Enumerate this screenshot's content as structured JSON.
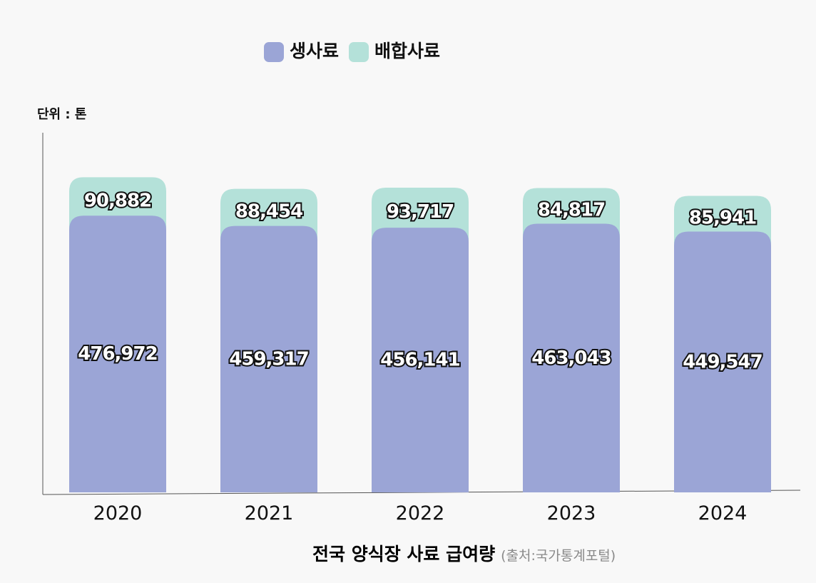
{
  "chart_data": {
    "type": "bar",
    "stacked": true,
    "categories": [
      "2020",
      "2021",
      "2022",
      "2023",
      "2024"
    ],
    "series": [
      {
        "name": "생사료",
        "values": [
          476972,
          459317,
          456141,
          463043,
          449547
        ],
        "color": "#9ba5d6"
      },
      {
        "name": "배합사료",
        "values": [
          90882,
          88454,
          93717,
          84817,
          85941
        ],
        "color": "#b4e1d9"
      }
    ],
    "value_labels": {
      "생사료": [
        "476,972",
        "459,317",
        "456,141",
        "463,043",
        "449,547"
      ],
      "배합사료": [
        "90,882",
        "88,454",
        "93,717",
        "84,817",
        "85,941"
      ]
    },
    "unit_label": "단위 : 톤",
    "title": "전국 양식장 사료 급여량",
    "source": "(출처:국가통계포털)",
    "legend_position": "top-center",
    "grid": false
  }
}
